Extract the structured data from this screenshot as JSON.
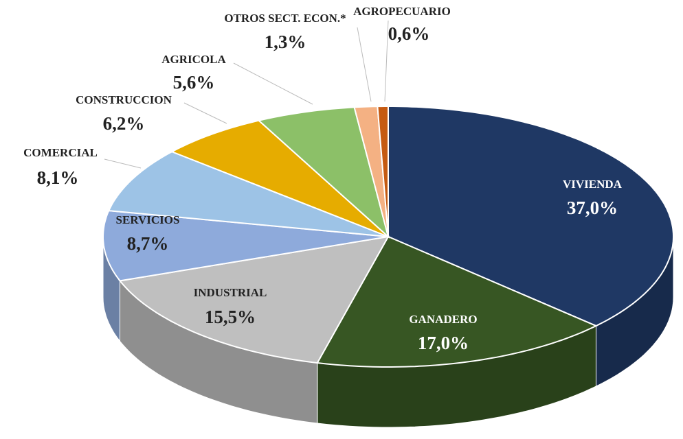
{
  "chart_data": {
    "type": "pie",
    "categories": [
      "VIVIENDA",
      "GANADERO",
      "INDUSTRIAL",
      "SERVICIOS",
      "COMERCIAL",
      "CONSTRUCCION",
      "AGRICOLA",
      "OTROS SECT. ECON.*",
      "AGROPECUARIO"
    ],
    "values": [
      37.0,
      17.0,
      15.5,
      8.7,
      8.1,
      6.2,
      5.6,
      1.3,
      0.6
    ],
    "value_labels": [
      "37,0%",
      "17,0%",
      "15,5%",
      "8,7%",
      "8,1%",
      "6,2%",
      "5,6%",
      "1,3%",
      "0,6%"
    ],
    "colors": [
      "#1f3864",
      "#375623",
      "#bfbfbf",
      "#8eaadb",
      "#9dc3e6",
      "#e6ac00",
      "#8cc068",
      "#f4b183",
      "#c55a11"
    ]
  }
}
